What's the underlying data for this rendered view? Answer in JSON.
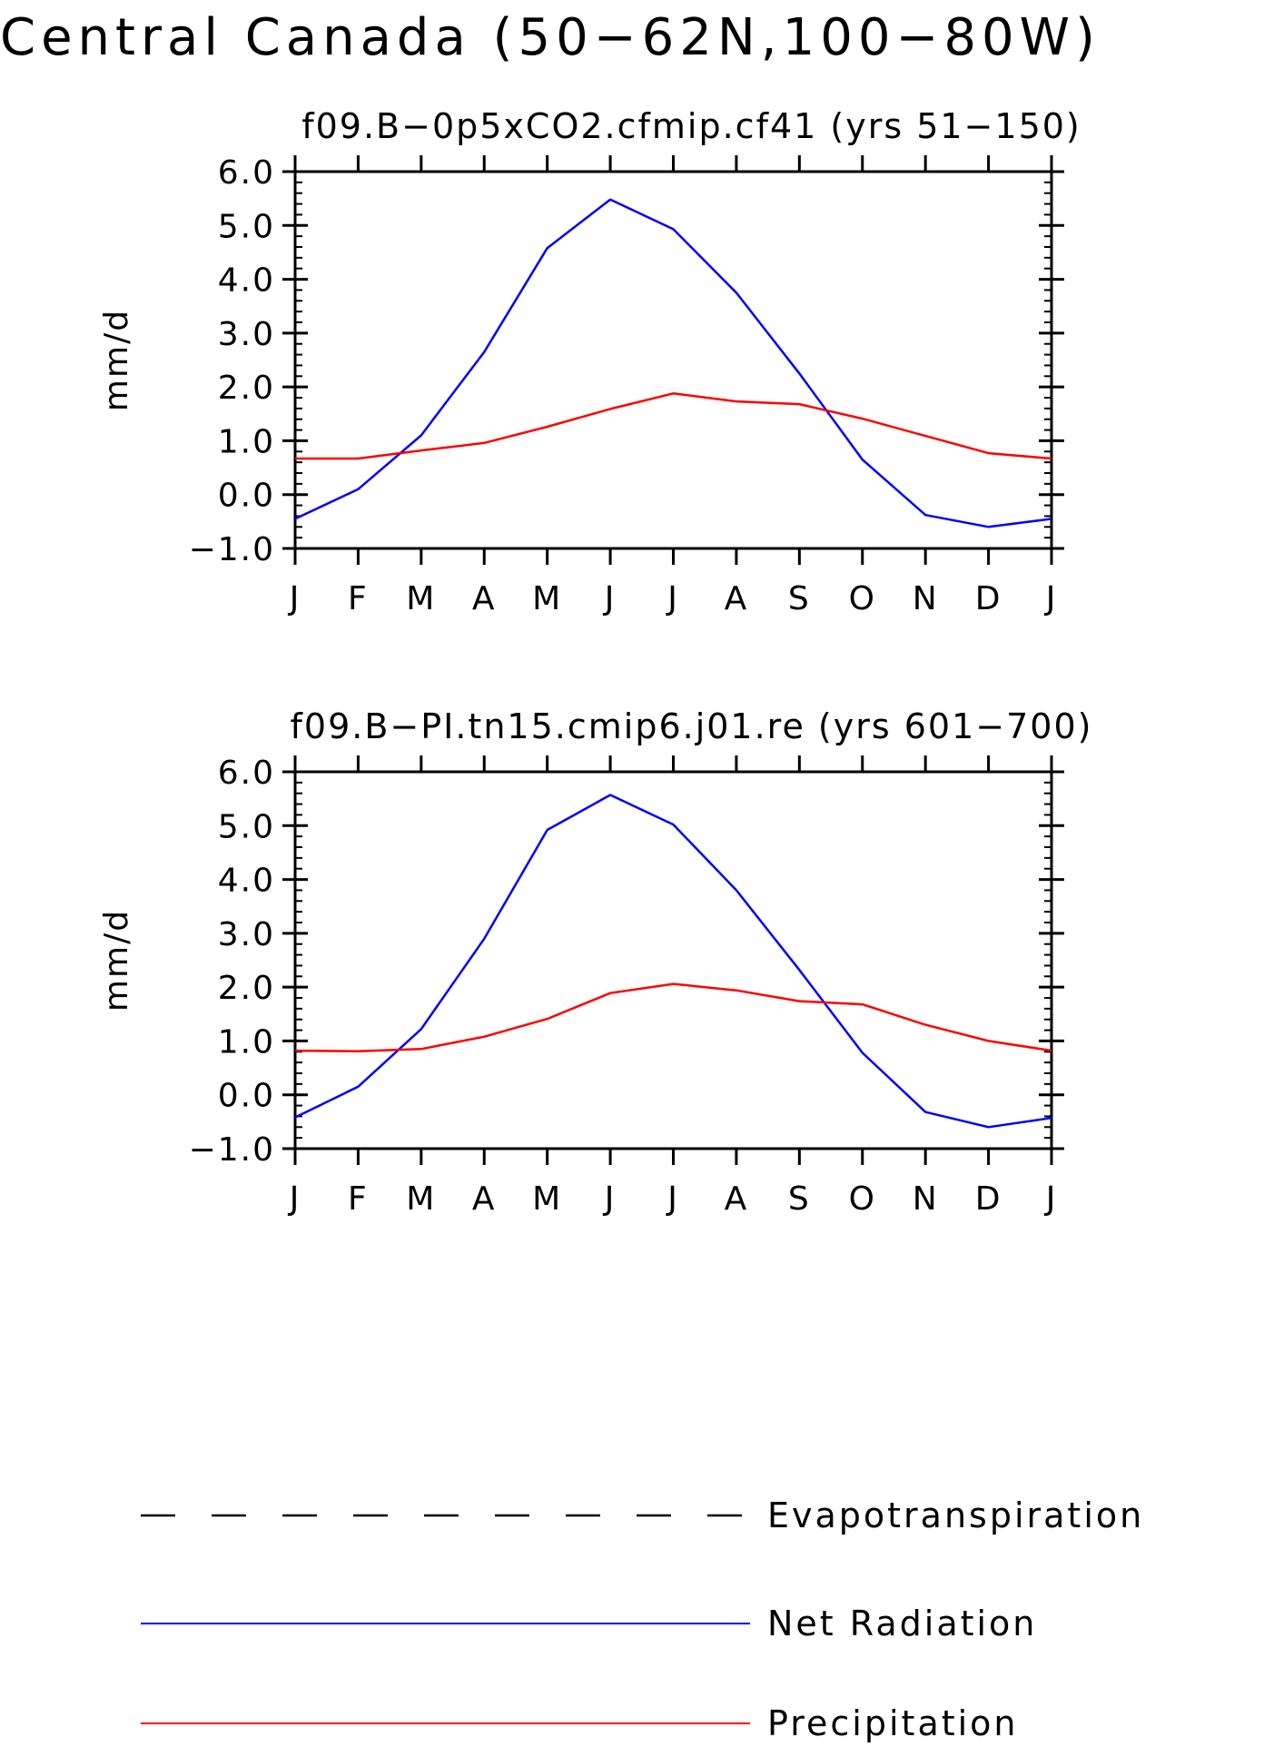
{
  "title": "Central Canada (50−62N,100−80W)",
  "colors": {
    "net_radiation": "#0000ff",
    "precipitation": "#ff0000",
    "evapotranspiration": "#000000"
  },
  "legend": {
    "entries": [
      {
        "label": "Evapotranspiration",
        "style": "dashed",
        "color": "#000000"
      },
      {
        "label": "Net Radiation",
        "style": "solid",
        "color": "#0000ff"
      },
      {
        "label": "Precipitation",
        "style": "solid",
        "color": "#ff0000"
      }
    ]
  },
  "chart_data": [
    {
      "type": "line",
      "title": "f09.B−0p5xCO2.cfmip.cf41 (yrs 51−150)",
      "xlabel": "",
      "ylabel": "mm/d",
      "categories": [
        "J",
        "F",
        "M",
        "A",
        "M",
        "J",
        "J",
        "A",
        "S",
        "O",
        "N",
        "D",
        "J"
      ],
      "ylim": [
        -1.0,
        6.0
      ],
      "yticks": [
        "−1.0",
        "0.0",
        "1.0",
        "2.0",
        "3.0",
        "4.0",
        "5.0",
        "6.0"
      ],
      "series": [
        {
          "name": "Net Radiation",
          "color": "#0000ff",
          "values": [
            -0.45,
            0.1,
            1.1,
            2.65,
            4.58,
            5.48,
            4.93,
            3.75,
            2.25,
            0.65,
            -0.38,
            -0.6,
            -0.45
          ]
        },
        {
          "name": "Precipitation",
          "color": "#ff0000",
          "values": [
            0.67,
            0.67,
            0.82,
            0.96,
            1.26,
            1.59,
            1.88,
            1.73,
            1.68,
            1.41,
            1.09,
            0.77,
            0.67
          ]
        }
      ]
    },
    {
      "type": "line",
      "title": "f09.B−PI.tn15.cmip6.j01.re (yrs 601−700)",
      "xlabel": "",
      "ylabel": "mm/d",
      "categories": [
        "J",
        "F",
        "M",
        "A",
        "M",
        "J",
        "J",
        "A",
        "S",
        "O",
        "N",
        "D",
        "J"
      ],
      "ylim": [
        -1.0,
        6.0
      ],
      "yticks": [
        "−1.0",
        "0.0",
        "1.0",
        "2.0",
        "3.0",
        "4.0",
        "5.0",
        "6.0"
      ],
      "series": [
        {
          "name": "Net Radiation",
          "color": "#0000ff",
          "values": [
            -0.42,
            0.15,
            1.22,
            2.9,
            4.92,
            5.57,
            5.02,
            3.8,
            2.32,
            0.78,
            -0.32,
            -0.6,
            -0.43
          ]
        },
        {
          "name": "Precipitation",
          "color": "#ff0000",
          "values": [
            0.82,
            0.81,
            0.85,
            1.08,
            1.41,
            1.89,
            2.06,
            1.94,
            1.74,
            1.68,
            1.3,
            1.0,
            0.82
          ]
        }
      ]
    }
  ]
}
